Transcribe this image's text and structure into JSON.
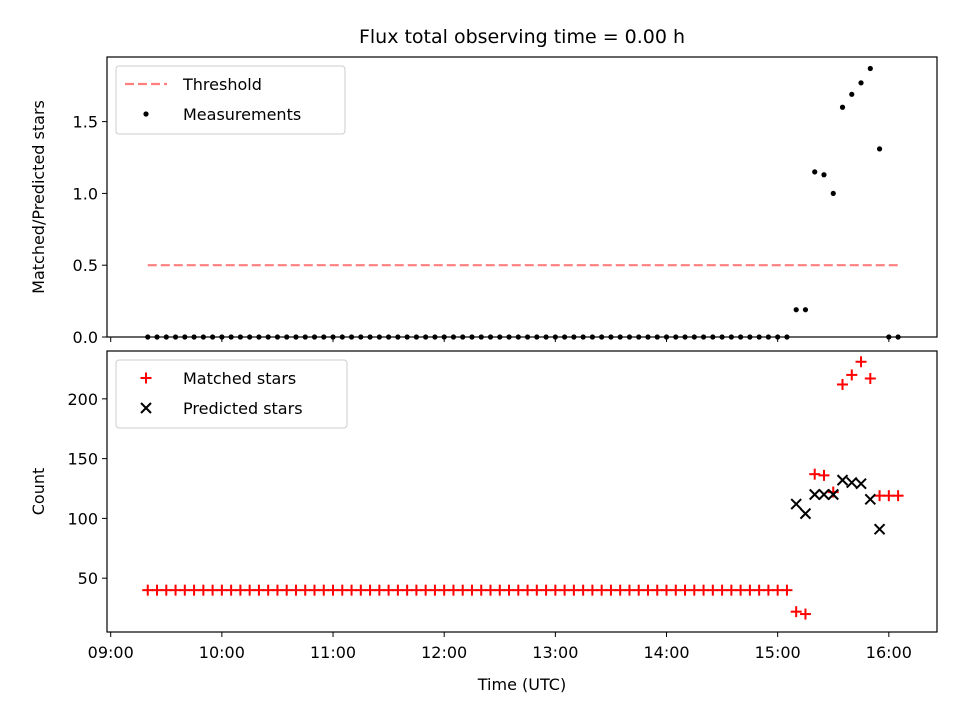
{
  "chart_data": [
    {
      "type": "line+scatter",
      "title": "Flux total observing time = 0.00 h",
      "xlabel": "",
      "ylabel": "Matched/Predicted stars",
      "ylim": [
        0,
        1.95
      ],
      "yticks": [
        0.0,
        0.5,
        1.0,
        1.5
      ],
      "ytick_labels": [
        "0.0",
        "0.5",
        "1.0",
        "1.5"
      ],
      "xlim": [
        "08:58",
        "16:26"
      ],
      "legend_position": "top-left",
      "threshold": {
        "name": "Threshold",
        "y": 0.5,
        "x_start": "09:20",
        "x_end": "16:05",
        "color": "#ff7f7f",
        "style": "dashed"
      },
      "series": [
        {
          "name": "Measurements",
          "color": "#000000",
          "marker": "dot",
          "points": [
            {
              "x": "09:20",
              "y": 0.0
            },
            {
              "x": "09:25",
              "y": 0.0
            },
            {
              "x": "09:30",
              "y": 0.0
            },
            {
              "x": "09:35",
              "y": 0.0
            },
            {
              "x": "09:40",
              "y": 0.0
            },
            {
              "x": "09:45",
              "y": 0.0
            },
            {
              "x": "09:50",
              "y": 0.0
            },
            {
              "x": "09:55",
              "y": 0.0
            },
            {
              "x": "10:00",
              "y": 0.0
            },
            {
              "x": "10:05",
              "y": 0.0
            },
            {
              "x": "10:10",
              "y": 0.0
            },
            {
              "x": "10:15",
              "y": 0.0
            },
            {
              "x": "10:20",
              "y": 0.0
            },
            {
              "x": "10:25",
              "y": 0.0
            },
            {
              "x": "10:30",
              "y": 0.0
            },
            {
              "x": "10:35",
              "y": 0.0
            },
            {
              "x": "10:40",
              "y": 0.0
            },
            {
              "x": "10:45",
              "y": 0.0
            },
            {
              "x": "10:50",
              "y": 0.0
            },
            {
              "x": "10:55",
              "y": 0.0
            },
            {
              "x": "11:00",
              "y": 0.0
            },
            {
              "x": "11:05",
              "y": 0.0
            },
            {
              "x": "11:10",
              "y": 0.0
            },
            {
              "x": "11:15",
              "y": 0.0
            },
            {
              "x": "11:20",
              "y": 0.0
            },
            {
              "x": "11:25",
              "y": 0.0
            },
            {
              "x": "11:30",
              "y": 0.0
            },
            {
              "x": "11:35",
              "y": 0.0
            },
            {
              "x": "11:40",
              "y": 0.0
            },
            {
              "x": "11:45",
              "y": 0.0
            },
            {
              "x": "11:50",
              "y": 0.0
            },
            {
              "x": "11:55",
              "y": 0.0
            },
            {
              "x": "12:00",
              "y": 0.0
            },
            {
              "x": "12:05",
              "y": 0.0
            },
            {
              "x": "12:10",
              "y": 0.0
            },
            {
              "x": "12:15",
              "y": 0.0
            },
            {
              "x": "12:20",
              "y": 0.0
            },
            {
              "x": "12:25",
              "y": 0.0
            },
            {
              "x": "12:30",
              "y": 0.0
            },
            {
              "x": "12:35",
              "y": 0.0
            },
            {
              "x": "12:40",
              "y": 0.0
            },
            {
              "x": "12:45",
              "y": 0.0
            },
            {
              "x": "12:50",
              "y": 0.0
            },
            {
              "x": "12:55",
              "y": 0.0
            },
            {
              "x": "13:00",
              "y": 0.0
            },
            {
              "x": "13:05",
              "y": 0.0
            },
            {
              "x": "13:10",
              "y": 0.0
            },
            {
              "x": "13:15",
              "y": 0.0
            },
            {
              "x": "13:20",
              "y": 0.0
            },
            {
              "x": "13:25",
              "y": 0.0
            },
            {
              "x": "13:30",
              "y": 0.0
            },
            {
              "x": "13:35",
              "y": 0.0
            },
            {
              "x": "13:40",
              "y": 0.0
            },
            {
              "x": "13:45",
              "y": 0.0
            },
            {
              "x": "13:50",
              "y": 0.0
            },
            {
              "x": "13:55",
              "y": 0.0
            },
            {
              "x": "14:00",
              "y": 0.0
            },
            {
              "x": "14:05",
              "y": 0.0
            },
            {
              "x": "14:10",
              "y": 0.0
            },
            {
              "x": "14:15",
              "y": 0.0
            },
            {
              "x": "14:20",
              "y": 0.0
            },
            {
              "x": "14:25",
              "y": 0.0
            },
            {
              "x": "14:30",
              "y": 0.0
            },
            {
              "x": "14:35",
              "y": 0.0
            },
            {
              "x": "14:40",
              "y": 0.0
            },
            {
              "x": "14:45",
              "y": 0.0
            },
            {
              "x": "14:50",
              "y": 0.0
            },
            {
              "x": "14:55",
              "y": 0.0
            },
            {
              "x": "15:00",
              "y": 0.0
            },
            {
              "x": "15:05",
              "y": 0.0
            },
            {
              "x": "15:10",
              "y": 0.19
            },
            {
              "x": "15:15",
              "y": 0.19
            },
            {
              "x": "15:20",
              "y": 1.15
            },
            {
              "x": "15:25",
              "y": 1.13
            },
            {
              "x": "15:30",
              "y": 1.0
            },
            {
              "x": "15:35",
              "y": 1.6
            },
            {
              "x": "15:40",
              "y": 1.69
            },
            {
              "x": "15:45",
              "y": 1.77
            },
            {
              "x": "15:50",
              "y": 1.87
            },
            {
              "x": "15:55",
              "y": 1.31
            },
            {
              "x": "16:00",
              "y": 0.0
            },
            {
              "x": "16:05",
              "y": 0.0
            }
          ]
        }
      ]
    },
    {
      "type": "scatter",
      "title": "",
      "xlabel": "Time (UTC)",
      "ylabel": "Count",
      "ylim": [
        5,
        240
      ],
      "yticks": [
        50,
        100,
        150,
        200
      ],
      "ytick_labels": [
        "50",
        "100",
        "150",
        "200"
      ],
      "xlim": [
        "08:58",
        "16:26"
      ],
      "xticks": [
        "09:00",
        "10:00",
        "11:00",
        "12:00",
        "13:00",
        "14:00",
        "15:00",
        "16:00"
      ],
      "xtick_labels": [
        "09:00",
        "10:00",
        "11:00",
        "12:00",
        "13:00",
        "14:00",
        "15:00",
        "16:00"
      ],
      "legend_position": "top-left",
      "series": [
        {
          "name": "Matched stars",
          "color": "#ff0000",
          "marker": "plus",
          "points": [
            {
              "x": "09:20",
              "y": 40
            },
            {
              "x": "09:25",
              "y": 40
            },
            {
              "x": "09:30",
              "y": 40
            },
            {
              "x": "09:35",
              "y": 40
            },
            {
              "x": "09:40",
              "y": 40
            },
            {
              "x": "09:45",
              "y": 40
            },
            {
              "x": "09:50",
              "y": 40
            },
            {
              "x": "09:55",
              "y": 40
            },
            {
              "x": "10:00",
              "y": 40
            },
            {
              "x": "10:05",
              "y": 40
            },
            {
              "x": "10:10",
              "y": 40
            },
            {
              "x": "10:15",
              "y": 40
            },
            {
              "x": "10:20",
              "y": 40
            },
            {
              "x": "10:25",
              "y": 40
            },
            {
              "x": "10:30",
              "y": 40
            },
            {
              "x": "10:35",
              "y": 40
            },
            {
              "x": "10:40",
              "y": 40
            },
            {
              "x": "10:45",
              "y": 40
            },
            {
              "x": "10:50",
              "y": 40
            },
            {
              "x": "10:55",
              "y": 40
            },
            {
              "x": "11:00",
              "y": 40
            },
            {
              "x": "11:05",
              "y": 40
            },
            {
              "x": "11:10",
              "y": 40
            },
            {
              "x": "11:15",
              "y": 40
            },
            {
              "x": "11:20",
              "y": 40
            },
            {
              "x": "11:25",
              "y": 40
            },
            {
              "x": "11:30",
              "y": 40
            },
            {
              "x": "11:35",
              "y": 40
            },
            {
              "x": "11:40",
              "y": 40
            },
            {
              "x": "11:45",
              "y": 40
            },
            {
              "x": "11:50",
              "y": 40
            },
            {
              "x": "11:55",
              "y": 40
            },
            {
              "x": "12:00",
              "y": 40
            },
            {
              "x": "12:05",
              "y": 40
            },
            {
              "x": "12:10",
              "y": 40
            },
            {
              "x": "12:15",
              "y": 40
            },
            {
              "x": "12:20",
              "y": 40
            },
            {
              "x": "12:25",
              "y": 40
            },
            {
              "x": "12:30",
              "y": 40
            },
            {
              "x": "12:35",
              "y": 40
            },
            {
              "x": "12:40",
              "y": 40
            },
            {
              "x": "12:45",
              "y": 40
            },
            {
              "x": "12:50",
              "y": 40
            },
            {
              "x": "12:55",
              "y": 40
            },
            {
              "x": "13:00",
              "y": 40
            },
            {
              "x": "13:05",
              "y": 40
            },
            {
              "x": "13:10",
              "y": 40
            },
            {
              "x": "13:15",
              "y": 40
            },
            {
              "x": "13:20",
              "y": 40
            },
            {
              "x": "13:25",
              "y": 40
            },
            {
              "x": "13:30",
              "y": 40
            },
            {
              "x": "13:35",
              "y": 40
            },
            {
              "x": "13:40",
              "y": 40
            },
            {
              "x": "13:45",
              "y": 40
            },
            {
              "x": "13:50",
              "y": 40
            },
            {
              "x": "13:55",
              "y": 40
            },
            {
              "x": "14:00",
              "y": 40
            },
            {
              "x": "14:05",
              "y": 40
            },
            {
              "x": "14:10",
              "y": 40
            },
            {
              "x": "14:15",
              "y": 40
            },
            {
              "x": "14:20",
              "y": 40
            },
            {
              "x": "14:25",
              "y": 40
            },
            {
              "x": "14:30",
              "y": 40
            },
            {
              "x": "14:35",
              "y": 40
            },
            {
              "x": "14:40",
              "y": 40
            },
            {
              "x": "14:45",
              "y": 40
            },
            {
              "x": "14:50",
              "y": 40
            },
            {
              "x": "14:55",
              "y": 40
            },
            {
              "x": "15:00",
              "y": 40
            },
            {
              "x": "15:05",
              "y": 40
            },
            {
              "x": "15:10",
              "y": 22
            },
            {
              "x": "15:15",
              "y": 20
            },
            {
              "x": "15:20",
              "y": 137
            },
            {
              "x": "15:25",
              "y": 136
            },
            {
              "x": "15:30",
              "y": 122
            },
            {
              "x": "15:35",
              "y": 212
            },
            {
              "x": "15:40",
              "y": 220
            },
            {
              "x": "15:45",
              "y": 231
            },
            {
              "x": "15:50",
              "y": 217
            },
            {
              "x": "15:55",
              "y": 119
            },
            {
              "x": "16:00",
              "y": 119
            },
            {
              "x": "16:05",
              "y": 119
            }
          ]
        },
        {
          "name": "Predicted stars",
          "color": "#000000",
          "marker": "x",
          "points": [
            {
              "x": "15:10",
              "y": 112
            },
            {
              "x": "15:15",
              "y": 104
            },
            {
              "x": "15:20",
              "y": 120
            },
            {
              "x": "15:25",
              "y": 120
            },
            {
              "x": "15:30",
              "y": 120
            },
            {
              "x": "15:35",
              "y": 132
            },
            {
              "x": "15:40",
              "y": 130
            },
            {
              "x": "15:45",
              "y": 129
            },
            {
              "x": "15:50",
              "y": 116
            },
            {
              "x": "15:55",
              "y": 91
            }
          ]
        }
      ]
    }
  ]
}
